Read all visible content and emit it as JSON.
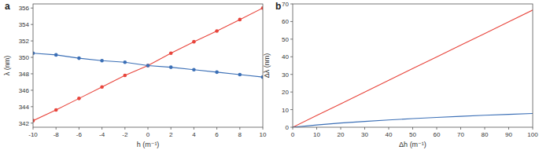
{
  "chart_data": [
    {
      "type": "line",
      "title": "a",
      "x_label": "h (m⁻¹)",
      "y_label": "λ (nm)",
      "x": [
        -10,
        -8,
        -6,
        -4,
        -2,
        0,
        2,
        4,
        6,
        8,
        10
      ],
      "series": [
        {
          "color": "#e8453c",
          "marker": "circle",
          "values": [
            342.3,
            343.6,
            345.0,
            346.4,
            347.8,
            349.0,
            350.5,
            351.9,
            353.2,
            354.6,
            356.0
          ]
        },
        {
          "color": "#3b6fb6",
          "marker": "circle",
          "values": [
            350.5,
            350.3,
            349.9,
            349.6,
            349.4,
            349.0,
            348.8,
            348.5,
            348.2,
            347.9,
            347.6
          ]
        }
      ],
      "xlim": [
        -10,
        10
      ],
      "xticks": [
        -10,
        -8,
        -6,
        -4,
        -2,
        0,
        2,
        4,
        6,
        8,
        10
      ],
      "ylim": [
        341.5,
        356.5
      ],
      "yticks": [
        342,
        344,
        346,
        348,
        350,
        352,
        354,
        356
      ],
      "grid": false
    },
    {
      "type": "line",
      "title": "b",
      "x_label": "Δh (m⁻¹)",
      "y_label": "Δλ (nm)",
      "x": [
        0,
        10,
        20,
        30,
        40,
        50,
        60,
        70,
        80,
        90,
        100
      ],
      "series": [
        {
          "color": "#e8453c",
          "marker": "none",
          "values": [
            0,
            6.7,
            13.3,
            20.0,
            26.6,
            33.3,
            39.9,
            46.6,
            53.2,
            59.9,
            66.5
          ]
        },
        {
          "color": "#3b6fb6",
          "marker": "none",
          "values": [
            0,
            1.3,
            2.4,
            3.3,
            4.1,
            4.9,
            5.6,
            6.2,
            6.8,
            7.3,
            7.8
          ]
        }
      ],
      "xlim": [
        0,
        100
      ],
      "xticks": [
        0,
        10,
        20,
        30,
        40,
        50,
        60,
        70,
        80,
        90,
        100
      ],
      "ylim": [
        0,
        70
      ],
      "yticks": [
        0,
        10,
        20,
        30,
        40,
        50,
        60,
        70
      ],
      "grid": false
    }
  ]
}
